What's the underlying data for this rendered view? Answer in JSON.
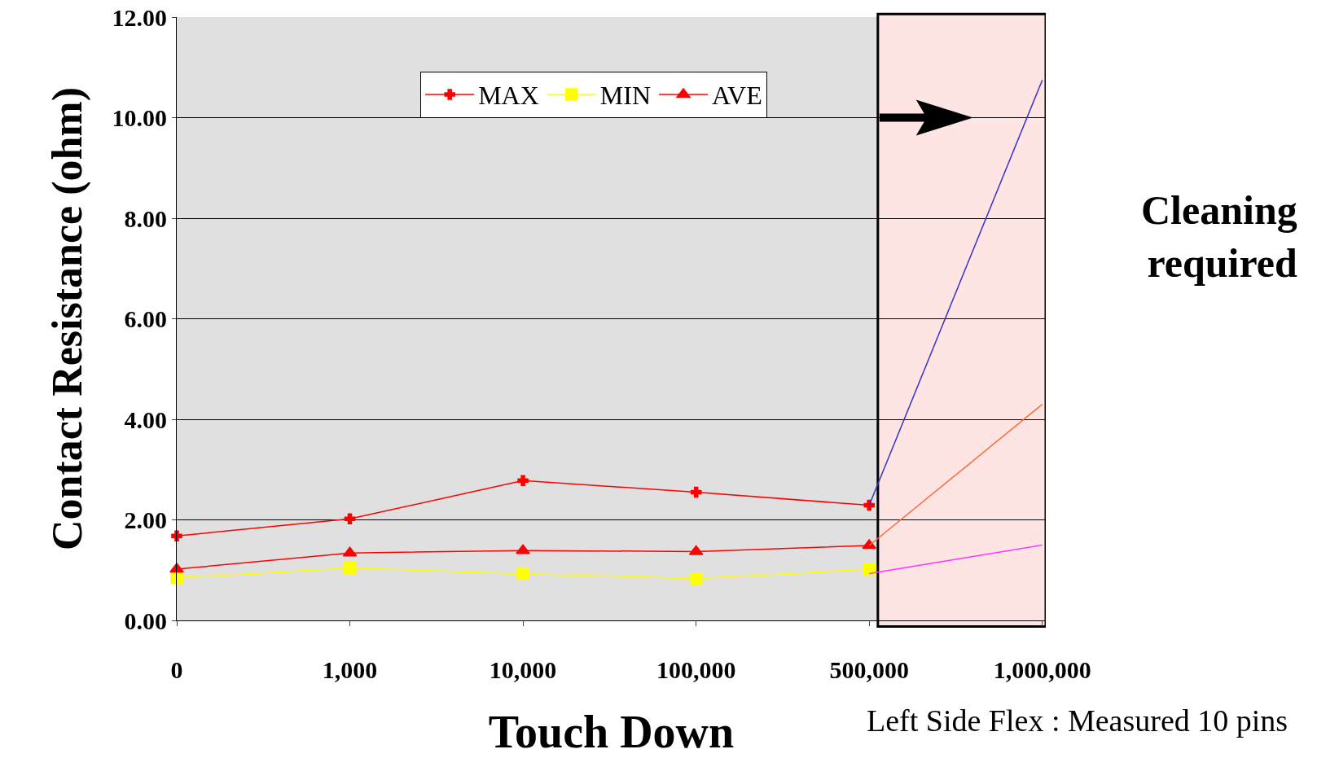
{
  "chart_data": {
    "type": "line",
    "xlabel": "Touch Down",
    "ylabel": "Contact Resistance (ohm)",
    "categories": [
      "0",
      "1,000",
      "10,000",
      "100,000",
      "500,000",
      "1,000,000"
    ],
    "series": [
      {
        "name": "MAX",
        "color": "#ff0000",
        "marker": "cross",
        "values": [
          1.68,
          2.02,
          2.78,
          2.55,
          2.29,
          null
        ]
      },
      {
        "name": "MIN",
        "color": "#ffff00",
        "marker": "square",
        "values": [
          0.85,
          1.04,
          0.93,
          0.83,
          1.02,
          null
        ]
      },
      {
        "name": "AVE",
        "color": "#ff0000",
        "marker": "triangle",
        "values": [
          1.02,
          1.34,
          1.39,
          1.37,
          1.49,
          null
        ]
      },
      {
        "color": "#3333cc",
        "marker": "none",
        "values": [
          null,
          null,
          null,
          null,
          2.29,
          10.75
        ]
      },
      {
        "color": "#ff6633",
        "marker": "none",
        "values": [
          null,
          null,
          null,
          null,
          1.49,
          4.3
        ]
      },
      {
        "color": "#ff33ff",
        "marker": "none",
        "values": [
          null,
          null,
          null,
          null,
          0.93,
          1.5
        ]
      }
    ],
    "ylim": [
      0,
      12
    ],
    "yticks": [
      {
        "value": 0,
        "label": "0.00"
      },
      {
        "value": 2,
        "label": "2.00"
      },
      {
        "value": 4,
        "label": "4.00"
      },
      {
        "value": 6,
        "label": "6.00"
      },
      {
        "value": 8,
        "label": "8.00"
      },
      {
        "value": 10,
        "label": "10.00"
      },
      {
        "value": 12,
        "label": "12.00"
      }
    ],
    "grid": "y",
    "legend": "top",
    "bands": [
      {
        "axis": "x",
        "from": "500,000",
        "to": "1,000,000",
        "color": "#ffe4e4"
      }
    ],
    "annotations": [
      "Cleaning\nrequired",
      "Left Side Flex : Measured 10 pins"
    ]
  }
}
